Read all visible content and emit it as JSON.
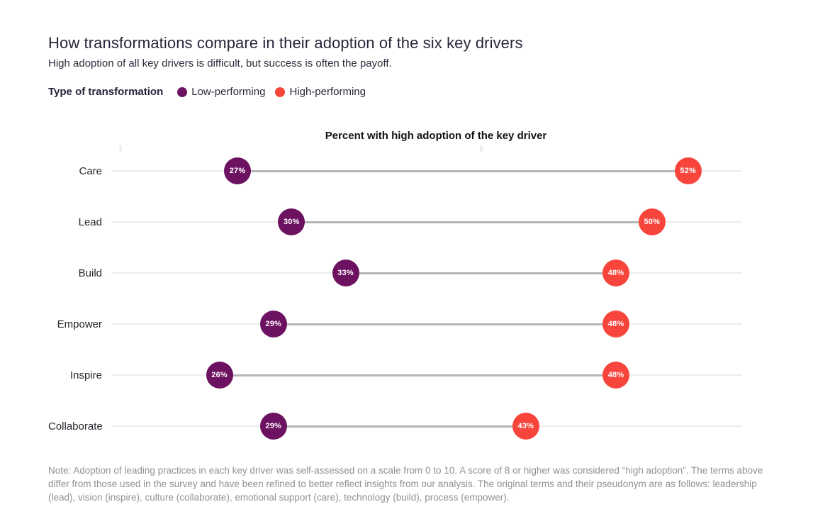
{
  "page": {
    "title": "How transformations compare in their adoption of the six key drivers",
    "subtitle": "High adoption of all key drivers is difficult, but success is often the payoff."
  },
  "legend": {
    "label": "Type of transformation",
    "items": [
      {
        "name": "Low-performing",
        "color": "#6d1261"
      },
      {
        "name": "High-performing",
        "color": "#f8453c"
      }
    ]
  },
  "chart_data": {
    "type": "dumbbell",
    "title": "Percent with high adoption of the key driver",
    "categories": [
      "Care",
      "Lead",
      "Build",
      "Empower",
      "Inspire",
      "Collaborate"
    ],
    "series": [
      {
        "name": "Low-performing",
        "color": "#6d1261",
        "values": [
          27,
          30,
          33,
          29,
          26,
          29
        ]
      },
      {
        "name": "High-performing",
        "color": "#f8453c",
        "values": [
          52,
          50,
          48,
          48,
          48,
          43
        ]
      }
    ],
    "value_suffix": "%",
    "axis": {
      "min": 20,
      "max": 55,
      "ticks": [
        20,
        40
      ]
    },
    "grid": false,
    "legend_position": "top-left",
    "colors": {
      "baseline_line": "#ececec",
      "connector_line": "#b5b5b5",
      "tick": "#ebebeb",
      "dot_label_text": "#ffffff"
    }
  },
  "note": "Note: Adoption of leading practices in each key driver was self-assessed on a scale from 0 to 10. A score of 8 or higher was considered “high adoption”. The terms above differ from those used in the survey and have been refined to better reflect insights from our analysis. The original terms and their pseudonym are as follows: leadership (lead), vision (inspire), culture (collaborate), emotional support (care), technology (build), process (empower)."
}
